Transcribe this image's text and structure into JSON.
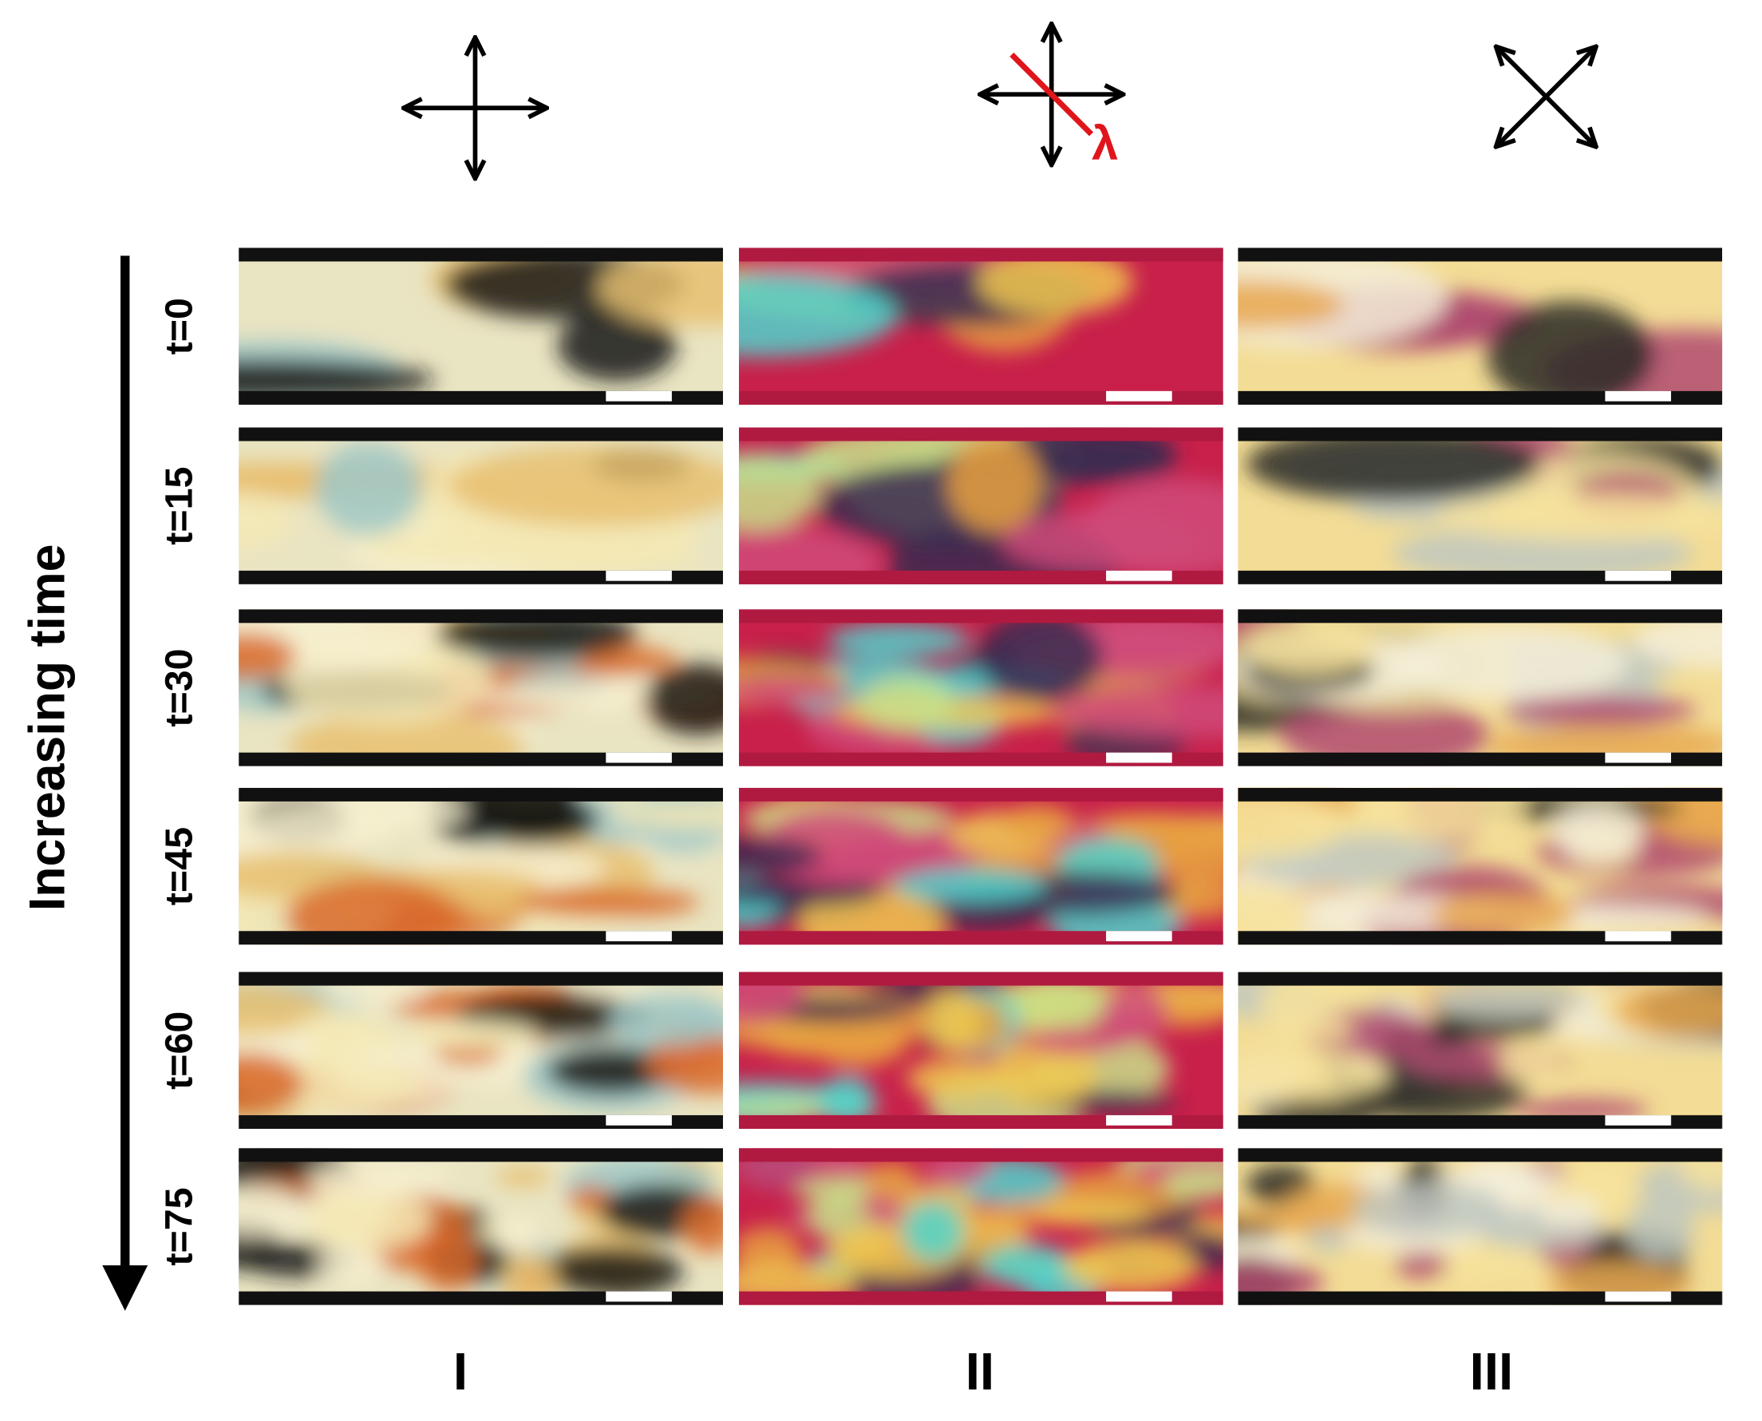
{
  "axis_label": "Increasing time",
  "row_labels": [
    "t=0",
    "t=15",
    "t=30",
    "t=45",
    "t=60",
    "t=75"
  ],
  "column_labels": [
    "I",
    "II",
    "III"
  ],
  "lambda_label": "λ"
}
